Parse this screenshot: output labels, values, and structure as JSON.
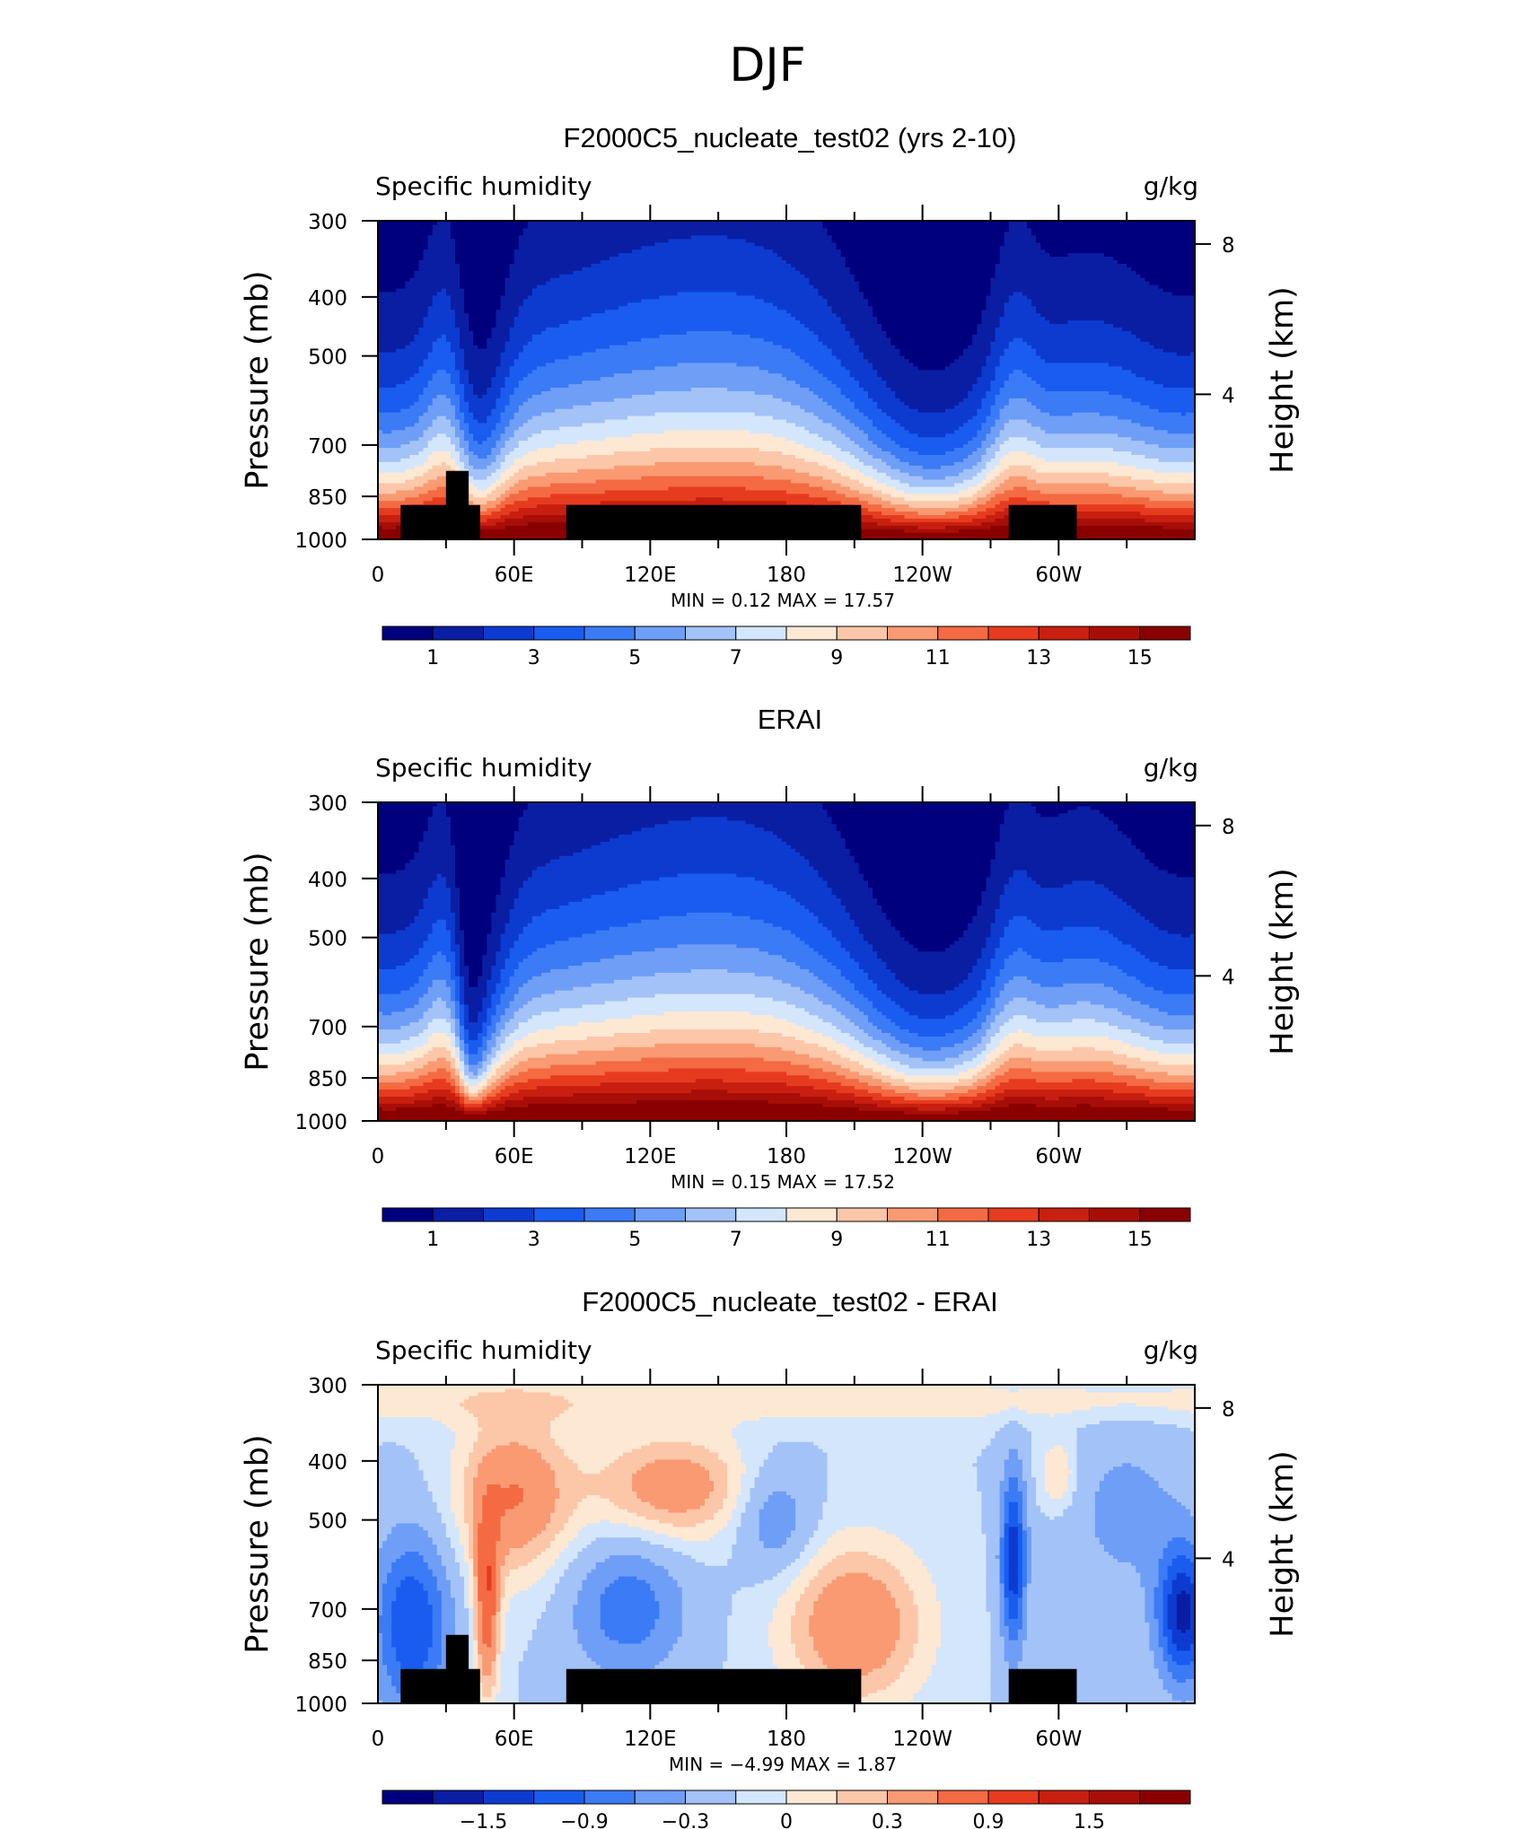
{
  "figure_title": "DJF",
  "panels": [
    {
      "title": "F2000C5_nucleate_test02 (yrs 2-10)",
      "left_label": "Specific humidity",
      "right_label": "g/kg",
      "ylabel": "Pressure (mb)",
      "ylabel_right": "Height (km)",
      "minmax": "MIN =    0.12   MAX =   17.57",
      "colorbar_ticks": [
        "1",
        "3",
        "5",
        "7",
        "9",
        "11",
        "13",
        "15"
      ],
      "has_topography": true,
      "kind": "field_a"
    },
    {
      "title": "ERAI",
      "left_label": "Specific humidity",
      "right_label": "g/kg",
      "ylabel": "Pressure (mb)",
      "ylabel_right": "Height (km)",
      "minmax": "MIN =    0.15   MAX =   17.52",
      "colorbar_ticks": [
        "1",
        "3",
        "5",
        "7",
        "9",
        "11",
        "13",
        "15"
      ],
      "has_topography": false,
      "kind": "field_b"
    },
    {
      "title": "F2000C5_nucleate_test02 - ERAI",
      "left_label": "Specific humidity",
      "right_label": "g/kg",
      "ylabel": "Pressure (mb)",
      "ylabel_right": "Height (km)",
      "minmax": "MIN =   −4.99   MAX =    1.87",
      "colorbar_ticks": [
        "−1.5",
        "−0.9",
        "−0.3",
        "0",
        "0.3",
        "0.9",
        "1.5"
      ],
      "has_topography": true,
      "kind": "diff"
    }
  ],
  "colors": {
    "levels_16": [
      "#00007f",
      "#0a1ea3",
      "#0d3bd0",
      "#1a5cf0",
      "#3b7bf5",
      "#6f9ef7",
      "#a3c2f8",
      "#d4e6fb",
      "#fde8d4",
      "#fcc7a8",
      "#f99a73",
      "#f46a42",
      "#e63b1e",
      "#c81f10",
      "#a80e08",
      "#8a0000"
    ],
    "land": "#000000"
  },
  "chart_data": [
    {
      "type": "heatmap",
      "title": "F2000C5_nucleate_test02 (yrs 2-10)",
      "variable": "Specific humidity",
      "units": "g/kg",
      "x_ticks": [
        "0",
        "60E",
        "120E",
        "180",
        "120W",
        "60W"
      ],
      "y_ticks": [
        "300",
        "400",
        "500",
        "700",
        "850",
        "1000"
      ],
      "y_ticks_right": [
        "8",
        "4"
      ],
      "ylabel": "Pressure (mb)",
      "ylabel_right": "Height (km)",
      "ylim": [
        1000,
        300
      ],
      "min": 0.12,
      "max": 17.57,
      "levels": [
        0,
        1,
        2,
        3,
        4,
        5,
        6,
        7,
        8,
        9,
        10,
        11,
        12,
        13,
        14,
        15,
        16
      ],
      "colorbar_labels": [
        1,
        3,
        5,
        7,
        9,
        11,
        13,
        15
      ]
    },
    {
      "type": "heatmap",
      "title": "ERAI",
      "variable": "Specific humidity",
      "units": "g/kg",
      "x_ticks": [
        "0",
        "60E",
        "120E",
        "180",
        "120W",
        "60W"
      ],
      "y_ticks": [
        "300",
        "400",
        "500",
        "700",
        "850",
        "1000"
      ],
      "y_ticks_right": [
        "8",
        "4"
      ],
      "ylabel": "Pressure (mb)",
      "ylabel_right": "Height (km)",
      "ylim": [
        1000,
        300
      ],
      "min": 0.15,
      "max": 17.52,
      "levels": [
        0,
        1,
        2,
        3,
        4,
        5,
        6,
        7,
        8,
        9,
        10,
        11,
        12,
        13,
        14,
        15,
        16
      ],
      "colorbar_labels": [
        1,
        3,
        5,
        7,
        9,
        11,
        13,
        15
      ]
    },
    {
      "type": "heatmap",
      "title": "F2000C5_nucleate_test02 - ERAI",
      "variable": "Specific humidity",
      "units": "g/kg",
      "x_ticks": [
        "0",
        "60E",
        "120E",
        "180",
        "120W",
        "60W"
      ],
      "y_ticks": [
        "300",
        "400",
        "500",
        "700",
        "850",
        "1000"
      ],
      "y_ticks_right": [
        "8",
        "4"
      ],
      "ylabel": "Pressure (mb)",
      "ylabel_right": "Height (km)",
      "ylim": [
        1000,
        300
      ],
      "min": -4.99,
      "max": 1.87,
      "levels": [
        -2.1,
        -1.8,
        -1.5,
        -1.2,
        -0.9,
        -0.6,
        -0.3,
        -0.1,
        0.1,
        0.3,
        0.6,
        0.9,
        1.2,
        1.5,
        1.8
      ],
      "colorbar_labels": [
        -1.5,
        -0.9,
        -0.3,
        0,
        0.3,
        0.9,
        1.5
      ]
    }
  ]
}
